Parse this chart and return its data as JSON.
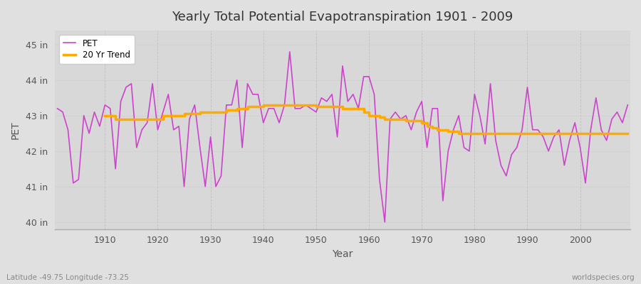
{
  "title": "Yearly Total Potential Evapotranspiration 1901 - 2009",
  "xlabel": "Year",
  "ylabel": "PET",
  "subtitle_left": "Latitude -49.75 Longitude -73.25",
  "subtitle_right": "worldspecies.org",
  "pet_color": "#cc44cc",
  "trend_color": "#ffaa00",
  "fig_bg_color": "#e0e0e0",
  "plot_bg_color": "#d8d8d8",
  "ylim": [
    39.8,
    45.4
  ],
  "yticks": [
    40,
    41,
    42,
    43,
    44,
    45
  ],
  "ytick_labels": [
    "40 in",
    "41 in",
    "42 in",
    "43 in",
    "44 in",
    "45 in"
  ],
  "xlim": [
    1900.5,
    2009.5
  ],
  "xticks": [
    1910,
    1920,
    1930,
    1940,
    1950,
    1960,
    1970,
    1980,
    1990,
    2000
  ],
  "years": [
    1901,
    1902,
    1903,
    1904,
    1905,
    1906,
    1907,
    1908,
    1909,
    1910,
    1911,
    1912,
    1913,
    1914,
    1915,
    1916,
    1917,
    1918,
    1919,
    1920,
    1921,
    1922,
    1923,
    1924,
    1925,
    1926,
    1927,
    1928,
    1929,
    1930,
    1931,
    1932,
    1933,
    1934,
    1935,
    1936,
    1937,
    1938,
    1939,
    1940,
    1941,
    1942,
    1943,
    1944,
    1945,
    1946,
    1947,
    1948,
    1949,
    1950,
    1951,
    1952,
    1953,
    1954,
    1955,
    1956,
    1957,
    1958,
    1959,
    1960,
    1961,
    1962,
    1963,
    1964,
    1965,
    1966,
    1967,
    1968,
    1969,
    1970,
    1971,
    1972,
    1973,
    1974,
    1975,
    1976,
    1977,
    1978,
    1979,
    1980,
    1981,
    1982,
    1983,
    1984,
    1985,
    1986,
    1987,
    1988,
    1989,
    1990,
    1991,
    1992,
    1993,
    1994,
    1995,
    1996,
    1997,
    1998,
    1999,
    2000,
    2001,
    2002,
    2003,
    2004,
    2005,
    2006,
    2007,
    2008,
    2009
  ],
  "pet": [
    43.2,
    43.1,
    42.6,
    41.1,
    41.2,
    43.0,
    42.5,
    43.1,
    42.7,
    43.3,
    43.2,
    41.5,
    43.4,
    43.8,
    43.9,
    42.1,
    42.6,
    42.8,
    43.9,
    42.6,
    43.1,
    43.6,
    42.6,
    42.7,
    41.0,
    42.9,
    43.3,
    42.1,
    41.0,
    42.4,
    41.0,
    41.3,
    43.3,
    43.3,
    44.0,
    42.1,
    43.9,
    43.6,
    43.6,
    42.8,
    43.2,
    43.2,
    42.8,
    43.3,
    44.8,
    43.2,
    43.2,
    43.3,
    43.2,
    43.1,
    43.5,
    43.4,
    43.6,
    42.4,
    44.4,
    43.4,
    43.6,
    43.2,
    44.1,
    44.1,
    43.6,
    41.2,
    40.0,
    42.9,
    43.1,
    42.9,
    43.0,
    42.6,
    43.1,
    43.4,
    42.1,
    43.2,
    43.2,
    40.6,
    42.0,
    42.6,
    43.0,
    42.1,
    42.0,
    43.6,
    43.0,
    42.2,
    43.9,
    42.3,
    41.6,
    41.3,
    41.9,
    42.1,
    42.6,
    43.8,
    42.6,
    42.6,
    42.4,
    42.0,
    42.4,
    42.6,
    41.6,
    42.3,
    42.8,
    42.1,
    41.1,
    42.6,
    43.5,
    42.6,
    42.3,
    42.9,
    43.1,
    42.8,
    43.3
  ],
  "trend_years": [
    1910,
    1911,
    1912,
    1913,
    1914,
    1915,
    1916,
    1917,
    1918,
    1919,
    1920,
    1921,
    1922,
    1923,
    1924,
    1925,
    1926,
    1927,
    1928,
    1929,
    1930,
    1931,
    1932,
    1933,
    1934,
    1935,
    1936,
    1937,
    1938,
    1939,
    1940,
    1941,
    1942,
    1943,
    1944,
    1945,
    1946,
    1947,
    1948,
    1949,
    1950,
    1951,
    1952,
    1953,
    1954,
    1955,
    1956,
    1957,
    1958,
    1959,
    1960,
    1961,
    1962,
    1963,
    1964,
    1965,
    1966,
    1967,
    1968,
    1969,
    1970,
    1971,
    1972,
    1973,
    1974,
    1975,
    1976,
    1977,
    1978,
    1979,
    1980,
    1981,
    1982,
    1983,
    1984,
    1985,
    1986,
    1987,
    1988,
    1989,
    1990,
    1991,
    1992,
    1993,
    1994,
    1995,
    1996,
    1997,
    1998,
    1999,
    2000,
    2001,
    2002,
    2003,
    2004,
    2005,
    2006,
    2007,
    2008,
    2009
  ],
  "trend": [
    43.0,
    43.0,
    42.9,
    42.9,
    42.9,
    42.9,
    42.9,
    42.9,
    42.9,
    42.9,
    42.9,
    43.0,
    43.0,
    43.0,
    43.0,
    43.05,
    43.05,
    43.05,
    43.1,
    43.1,
    43.1,
    43.1,
    43.1,
    43.15,
    43.15,
    43.2,
    43.2,
    43.25,
    43.25,
    43.25,
    43.3,
    43.3,
    43.3,
    43.3,
    43.3,
    43.3,
    43.3,
    43.3,
    43.3,
    43.3,
    43.25,
    43.25,
    43.25,
    43.25,
    43.25,
    43.2,
    43.2,
    43.2,
    43.2,
    43.1,
    43.0,
    43.0,
    42.95,
    42.9,
    42.9,
    42.9,
    42.9,
    42.85,
    42.85,
    42.85,
    42.8,
    42.7,
    42.65,
    42.6,
    42.6,
    42.55,
    42.55,
    42.5,
    42.5,
    42.5,
    42.5,
    42.5,
    42.5,
    42.5,
    42.5,
    42.5,
    42.5,
    42.5,
    42.5,
    42.5,
    42.5,
    42.5,
    42.5,
    42.5,
    42.5,
    42.5,
    42.5,
    42.5,
    42.5,
    42.5,
    42.5,
    42.5,
    42.5,
    42.5,
    42.5,
    42.5,
    42.5,
    42.5,
    42.5,
    42.5
  ]
}
